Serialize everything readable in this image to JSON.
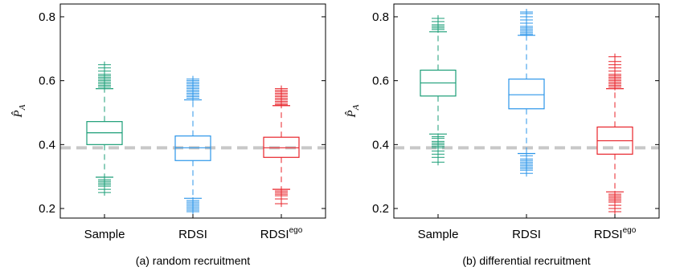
{
  "chart_data": [
    {
      "type": "box",
      "caption": "(a) random recruitment",
      "ylabel": "P̂_A",
      "ylim": [
        0.17,
        0.84
      ],
      "yticks": [
        0.2,
        0.4,
        0.6,
        0.8
      ],
      "reference_line": {
        "y": 0.39,
        "color": "#c8c8c8",
        "style": "dashed"
      },
      "categories": [
        {
          "label": "Sample",
          "superscript": "",
          "color": "#1b9e77",
          "q1": 0.4,
          "median": 0.437,
          "q3": 0.472,
          "whisker_low": 0.298,
          "whisker_high": 0.575,
          "outliers_low": [
            0.29,
            0.285,
            0.28,
            0.275,
            0.27,
            0.26,
            0.25
          ],
          "outliers_high": [
            0.58,
            0.585,
            0.59,
            0.595,
            0.6,
            0.605,
            0.61,
            0.615,
            0.62,
            0.63,
            0.64,
            0.65
          ]
        },
        {
          "label": "RDSI",
          "superscript": "",
          "color": "#2b95e9",
          "q1": 0.35,
          "median": 0.39,
          "q3": 0.427,
          "whisker_low": 0.232,
          "whisker_high": 0.54,
          "outliers_low": [
            0.225,
            0.22,
            0.215,
            0.21,
            0.205,
            0.2,
            0.195,
            0.19
          ],
          "outliers_high": [
            0.545,
            0.55,
            0.555,
            0.56,
            0.565,
            0.57,
            0.575,
            0.58,
            0.585,
            0.59,
            0.595,
            0.6,
            0.605
          ]
        },
        {
          "label": "RDSI",
          "superscript": "ego",
          "color": "#e8232a",
          "q1": 0.36,
          "median": 0.39,
          "q3": 0.423,
          "whisker_low": 0.26,
          "whisker_high": 0.522,
          "outliers_low": [
            0.255,
            0.25,
            0.245,
            0.24,
            0.23,
            0.215
          ],
          "outliers_high": [
            0.525,
            0.53,
            0.535,
            0.54,
            0.545,
            0.55,
            0.555,
            0.56,
            0.565,
            0.57,
            0.575
          ]
        }
      ]
    },
    {
      "type": "box",
      "caption": "(b) differential recruitment",
      "ylabel": "P̂_A",
      "ylim": [
        0.17,
        0.84
      ],
      "yticks": [
        0.2,
        0.4,
        0.6,
        0.8
      ],
      "reference_line": {
        "y": 0.39,
        "color": "#c8c8c8",
        "style": "dashed"
      },
      "categories": [
        {
          "label": "Sample",
          "superscript": "",
          "color": "#1b9e77",
          "q1": 0.552,
          "median": 0.593,
          "q3": 0.633,
          "whisker_low": 0.433,
          "whisker_high": 0.753,
          "outliers_low": [
            0.425,
            0.42,
            0.41,
            0.405,
            0.4,
            0.395,
            0.39,
            0.38,
            0.37,
            0.36,
            0.345
          ],
          "outliers_high": [
            0.76,
            0.765,
            0.77,
            0.775,
            0.785,
            0.795
          ]
        },
        {
          "label": "RDSI",
          "superscript": "",
          "color": "#2b95e9",
          "q1": 0.512,
          "median": 0.556,
          "q3": 0.605,
          "whisker_low": 0.372,
          "whisker_high": 0.742,
          "outliers_low": [
            0.365,
            0.355,
            0.35,
            0.345,
            0.34,
            0.335,
            0.33,
            0.325,
            0.32,
            0.31
          ],
          "outliers_high": [
            0.745,
            0.75,
            0.755,
            0.76,
            0.765,
            0.77,
            0.78,
            0.79,
            0.8,
            0.81,
            0.815
          ]
        },
        {
          "label": "RDSI",
          "superscript": "ego",
          "color": "#e8232a",
          "q1": 0.37,
          "median": 0.412,
          "q3": 0.455,
          "whisker_low": 0.252,
          "whisker_high": 0.575,
          "outliers_low": [
            0.245,
            0.24,
            0.235,
            0.23,
            0.225,
            0.22,
            0.21,
            0.2,
            0.19
          ],
          "outliers_high": [
            0.58,
            0.585,
            0.59,
            0.595,
            0.6,
            0.605,
            0.61,
            0.615,
            0.62,
            0.63,
            0.64,
            0.65,
            0.66,
            0.675
          ]
        }
      ]
    }
  ]
}
